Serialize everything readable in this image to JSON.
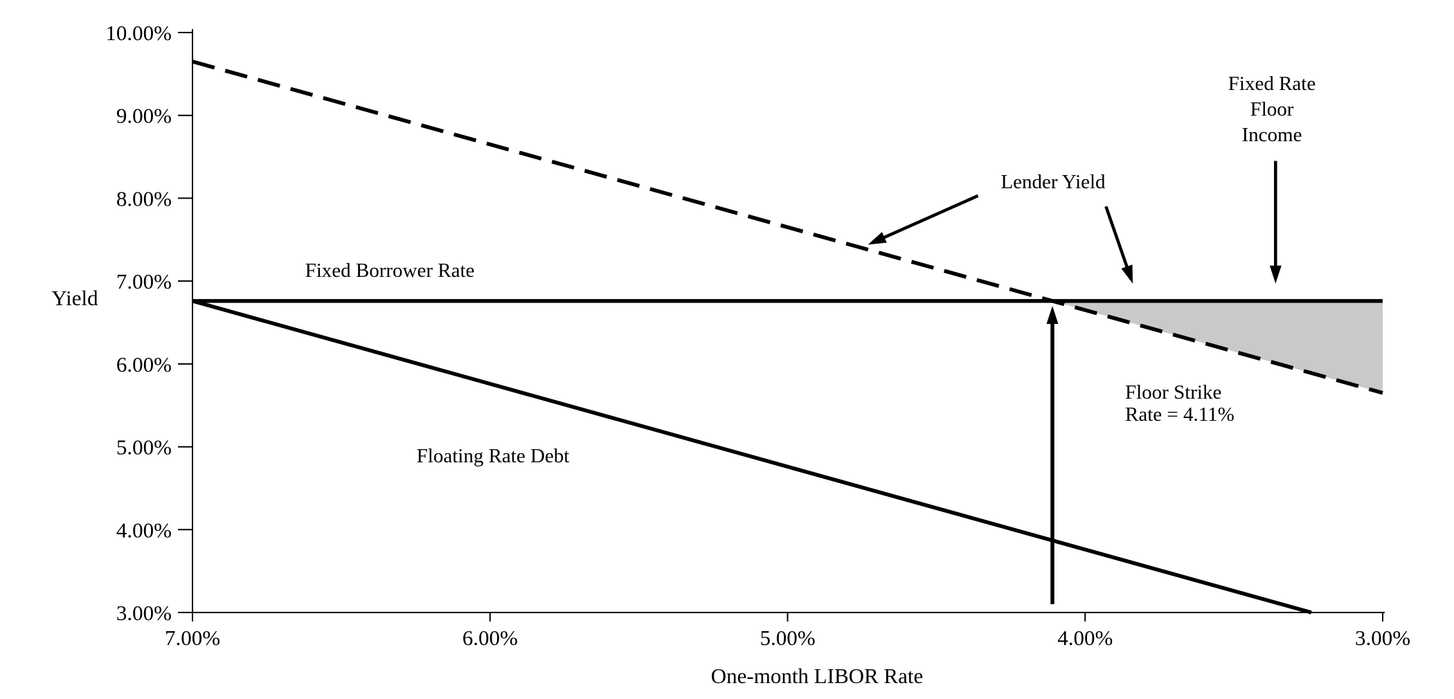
{
  "chart_data": {
    "type": "line",
    "title": "",
    "xlabel": "One-month LIBOR Rate",
    "ylabel": "Yield",
    "x_axis": {
      "min": 3,
      "max": 7,
      "reversed": true,
      "tick_values": [
        7,
        6,
        5,
        4,
        3
      ],
      "tick_labels": [
        "7.00%",
        "6.00%",
        "5.00%",
        "4.00%",
        "3.00%"
      ]
    },
    "y_axis": {
      "min": 3,
      "max": 10,
      "tick_values": [
        10,
        9,
        8,
        7,
        6,
        5,
        4,
        3
      ],
      "tick_labels": [
        "10.00%",
        "9.00%",
        "8.00%",
        "7.00%",
        "6.00%",
        "5.00%",
        "4.00%",
        "3.00%"
      ]
    },
    "grid": false,
    "legend": false,
    "series": [
      {
        "name": "Lender Yield",
        "line_style": "dashed",
        "points": [
          [
            7,
            9.65
          ],
          [
            3,
            5.65
          ]
        ]
      },
      {
        "name": "Fixed Borrower Rate",
        "line_style": "solid",
        "points": [
          [
            7,
            6.76
          ],
          [
            3,
            6.76
          ]
        ]
      },
      {
        "name": "Floating Rate Debt",
        "line_style": "solid",
        "points": [
          [
            7,
            6.76
          ],
          [
            3.24,
            3.0
          ]
        ]
      }
    ],
    "floor_strike_rate_pct": 4.11,
    "floor_income_area": {
      "fill": "#c9c9c9",
      "points": [
        [
          4.11,
          6.76
        ],
        [
          3,
          6.76
        ],
        [
          3,
          5.65
        ]
      ]
    },
    "strike_arrow": {
      "from": [
        4.11,
        3.1
      ],
      "to": [
        4.11,
        6.7
      ]
    },
    "pointer_arrows": [
      {
        "name": "lender-yield-pointer-left",
        "from": [
          4.36,
          8.03
        ],
        "to": [
          4.73,
          7.44
        ]
      },
      {
        "name": "lender-yield-pointer-right",
        "from": [
          3.93,
          7.9
        ],
        "to": [
          3.84,
          6.97
        ]
      },
      {
        "name": "floor-income-pointer",
        "from": [
          3.36,
          8.45
        ],
        "to": [
          3.36,
          6.97
        ]
      }
    ]
  },
  "labels": {
    "fixed_borrower_rate": "Fixed Borrower Rate",
    "floating_rate_debt": "Floating Rate Debt",
    "lender_yield": "Lender Yield",
    "floor_income_line1": "Fixed Rate",
    "floor_income_line2": "Floor",
    "floor_income_line3": "Income",
    "floor_strike_line1": "Floor Strike",
    "floor_strike_line2": "Rate = 4.11%"
  },
  "colors": {
    "line": "#000000",
    "text": "#000000",
    "area_fill": "#c9c9c9",
    "background": "#ffffff"
  }
}
